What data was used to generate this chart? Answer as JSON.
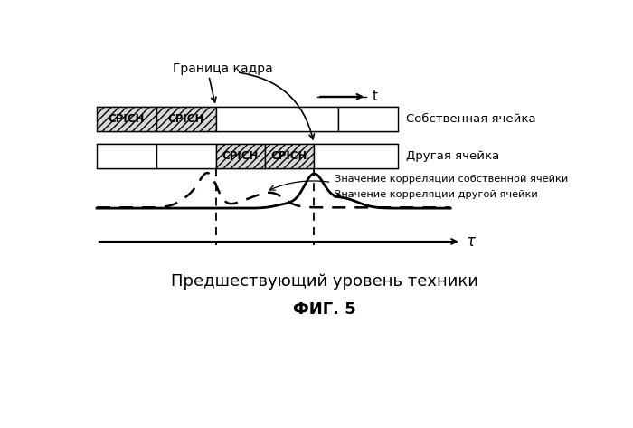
{
  "title_main": "Предшествующий уровень техники",
  "title_fig": "ФИГ. 5",
  "label_t": "t",
  "label_tau": "τ",
  "label_frame": "Граница кадра",
  "label_own_cell": "Собственная ячейка",
  "label_other_cell": "Другая ячейка",
  "label_corr_own": "Значение корреляции собственной ячейки",
  "label_corr_other": "Значение корреляции другой ячейки",
  "cpich_label": "CPICH",
  "bg_color": "#ffffff"
}
